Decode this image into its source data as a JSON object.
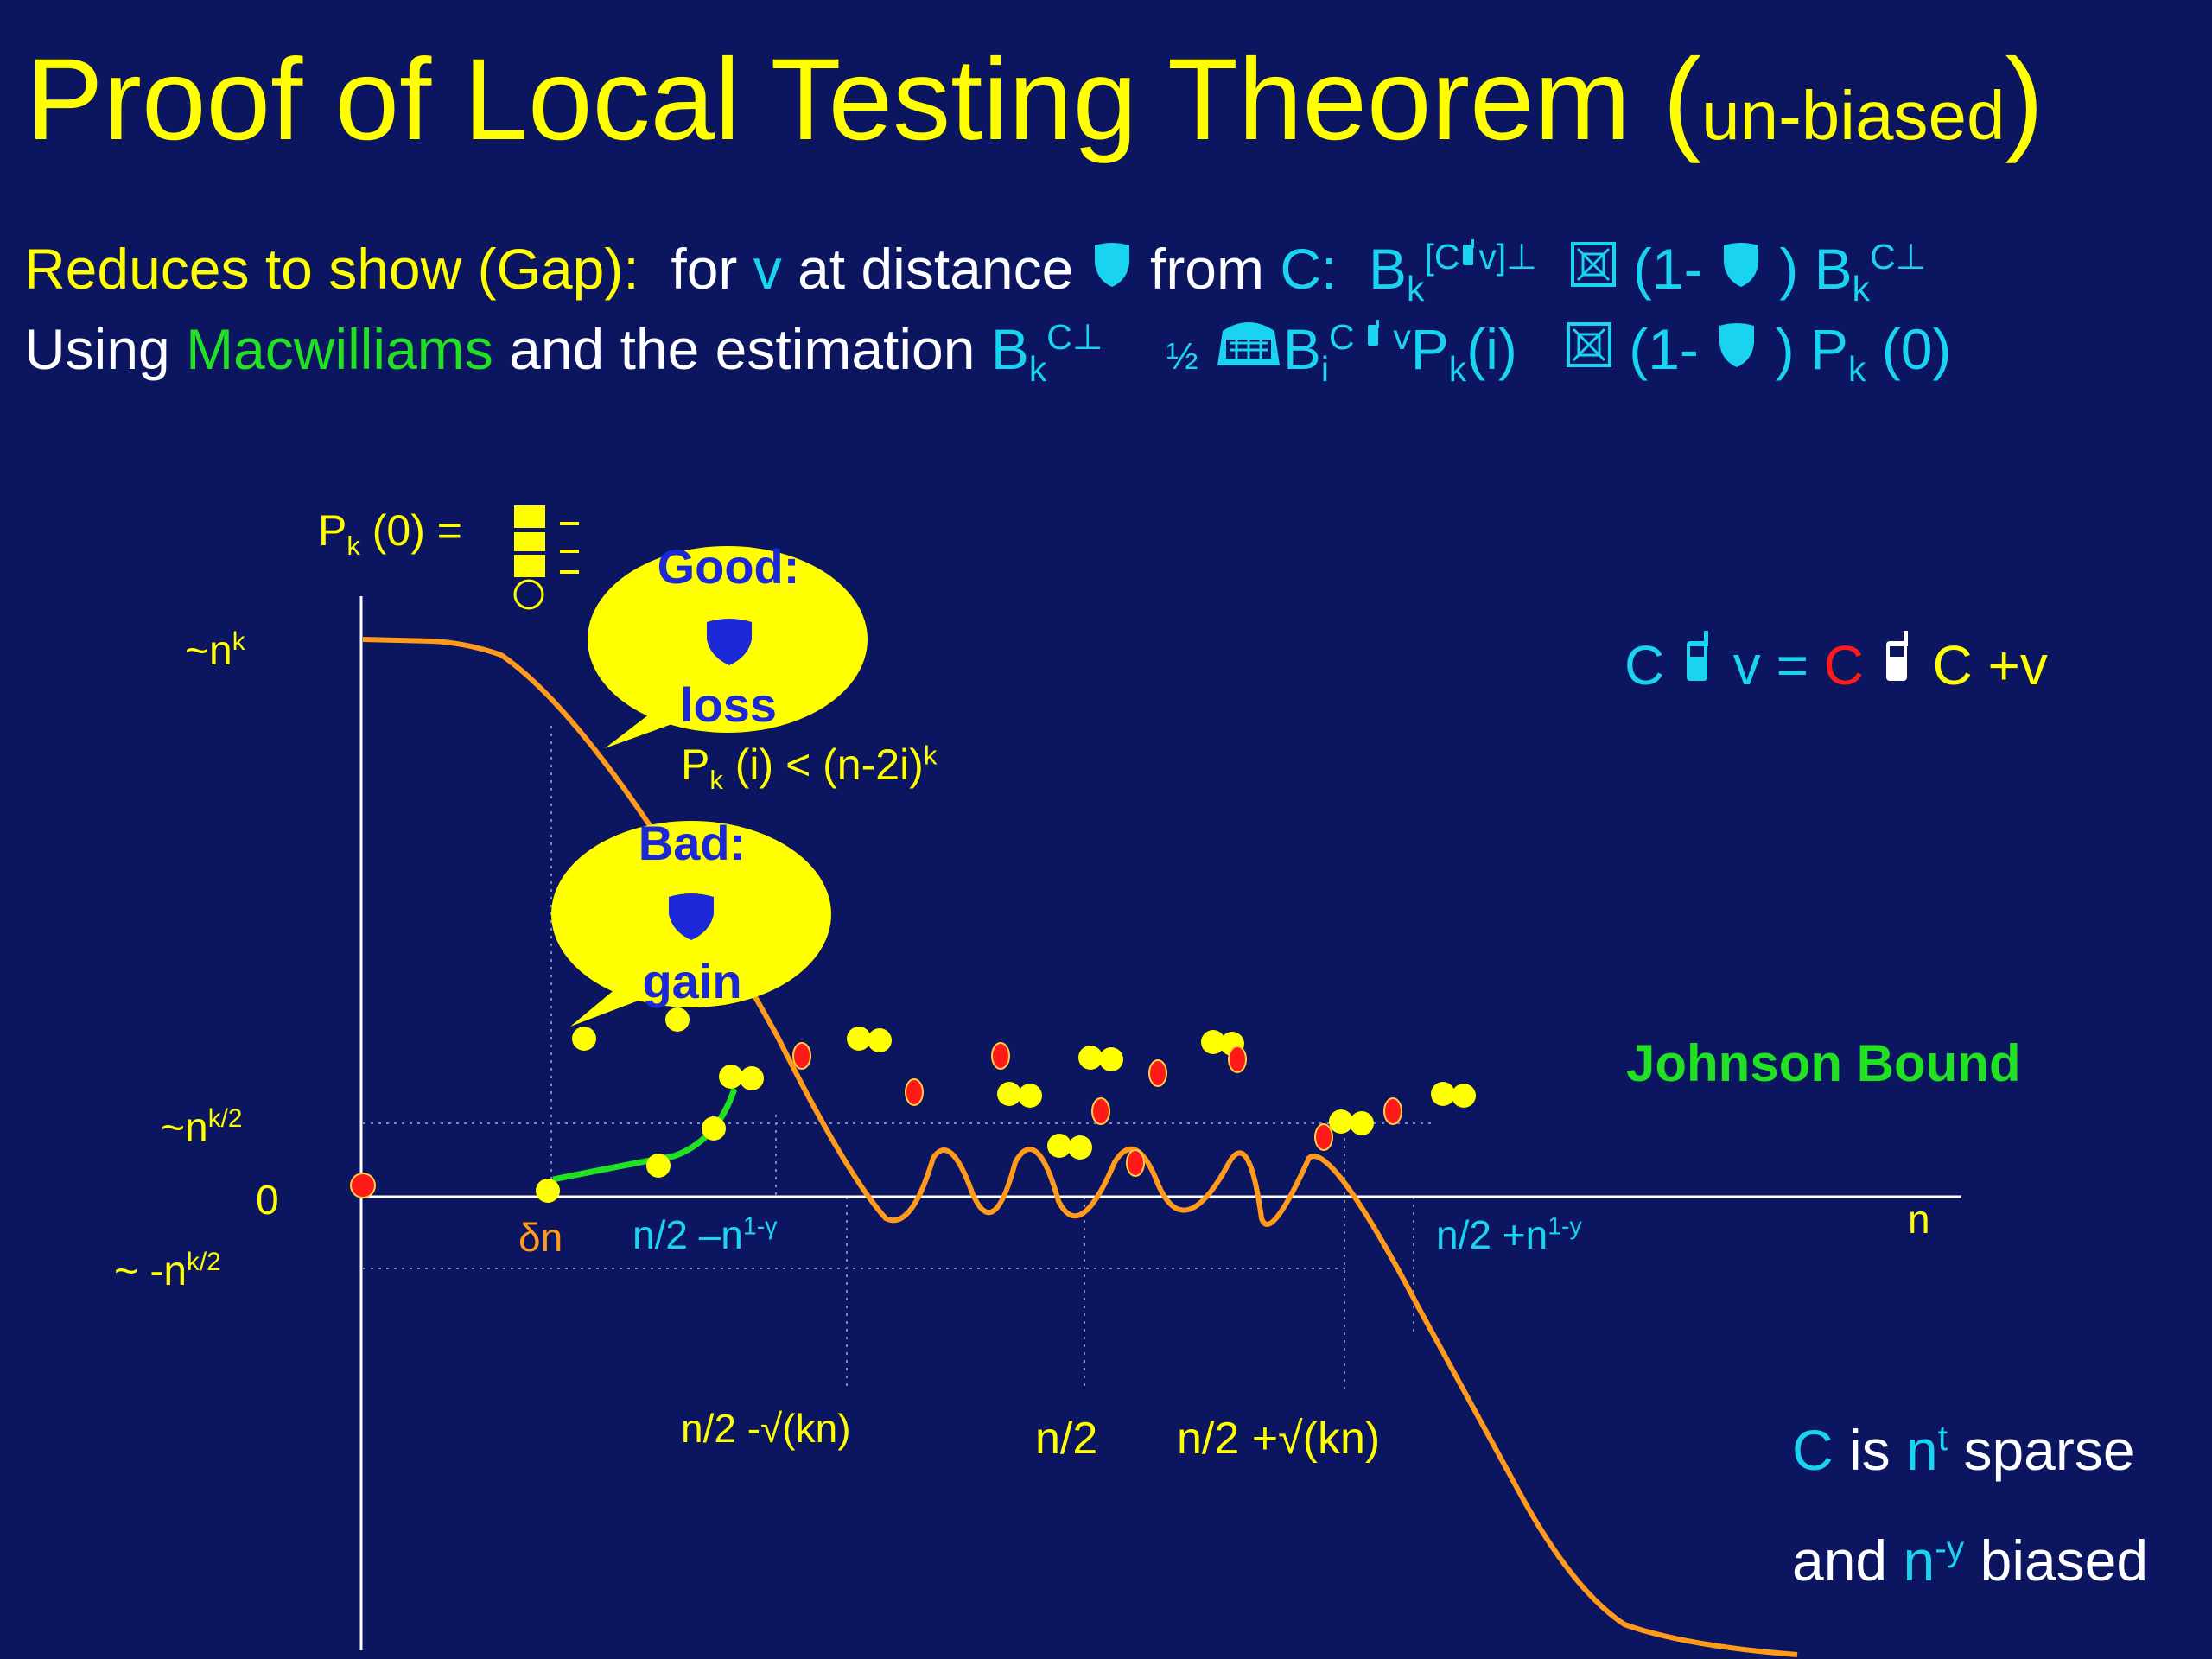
{
  "title": {
    "main": "Proof of Local Testing Theorem (",
    "sub": "un-biased",
    "close": ")"
  },
  "line1": {
    "t1": "Reduces to show (Gap):",
    "t2": "for",
    "v": "v",
    "t3": "at distance",
    "t4": "from",
    "c": "C:",
    "bk": "B",
    "bk_sub": "k",
    "bk_sup": "[C",
    "bk_sup2": "v]",
    "perp": "⊥",
    "cmp1": "(1-",
    "cmp2": ")",
    "bk2": "B",
    "bk2_sub": "k",
    "bk2_sup": "C⊥"
  },
  "line2": {
    "t1": "Using",
    "macw": "Macwilliams",
    "t2": "and the estimation",
    "bk": "B",
    "bk_sub": "k",
    "bk_sup": "C⊥",
    "half": "½",
    "bi": "B",
    "bi_sub": "i",
    "bi_sup": "C",
    "bi_sup2": "v",
    "pk": "P",
    "pk_sub": "k",
    "pk_arg": "(i)",
    "cmp1": "(1-",
    "cmp2": ")",
    "pk0": "P",
    "pk0_sub": "k",
    "pk0_arg": "(0)"
  },
  "diagram": {
    "pk0_label": "P",
    "pk0_sub": "k",
    "pk0_rest": "(0) =",
    "y_labels": {
      "top": "~n",
      "top_sup": "k",
      "mid": "~n",
      "mid_sup": "k/2",
      "zero": "0",
      "neg": "~  -n",
      "neg_sup": "k/2"
    },
    "x_labels": {
      "delta_n": "δn",
      "left_gap": "n/2 –n",
      "left_gap_sup": "1-γ",
      "right_gap": "n/2 +n",
      "right_gap_sup": "1-y",
      "n": "n",
      "sqrt_left": "n/2 -√(kn)",
      "half": "n/2",
      "sqrt_right": "n/2 +√(kn)"
    },
    "good_bubble": {
      "title": "Good:",
      "word": "loss"
    },
    "bad_bubble": {
      "title": "Bad:",
      "word": "gain"
    },
    "pk_bound": {
      "p": "P",
      "sub": "k",
      "rest": "(i)  < (n-2i)",
      "sup": "k"
    },
    "relation": {
      "c1": "C",
      "v": "v =",
      "c2": "C",
      "c3": "C +v"
    },
    "johnson": "Johnson Bound",
    "sparse": {
      "l1a": "C",
      "l1b": "is",
      "l1c": "n",
      "l1sup": "t",
      "l1d": "sparse",
      "l2a": "and",
      "l2b": "n",
      "l2sup": "-y",
      "l2c": "biased"
    }
  },
  "colors": {
    "background": "#0b1560",
    "yellow": "#ffff00",
    "cyan": "#19d3f0",
    "green": "#22e022",
    "red": "#ff1a1a",
    "orange": "#ff9a1a",
    "blue": "#1a28d8"
  },
  "icons": [
    "shield-icon",
    "phone-icon",
    "checkbox-cross-icon",
    "stadium-icon"
  ]
}
